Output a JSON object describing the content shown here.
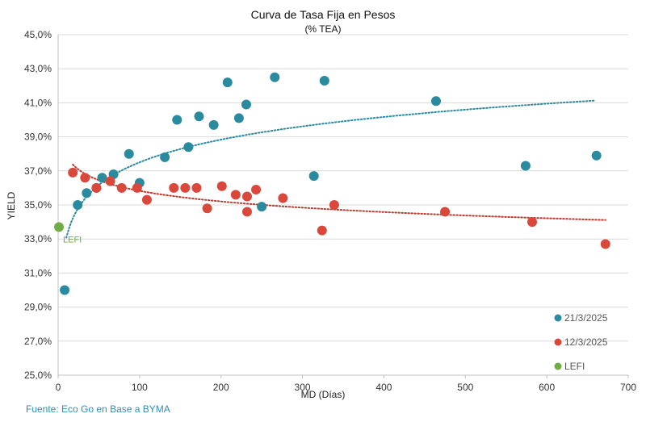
{
  "chart_data": {
    "type": "scatter",
    "title": "Curva de Tasa Fija en Pesos",
    "subtitle": "(% TEA)",
    "xlabel": "MD (Días)",
    "ylabel": "YIELD",
    "xlim": [
      0,
      700
    ],
    "ylim": [
      25,
      45
    ],
    "xticks": [
      0,
      100,
      200,
      300,
      400,
      500,
      600,
      700
    ],
    "xtick_labels": [
      "0",
      "100",
      "200",
      "300",
      "400",
      "500",
      "600",
      "700"
    ],
    "yticks": [
      25,
      27,
      29,
      31,
      33,
      35,
      37,
      39,
      41,
      43,
      45
    ],
    "ytick_labels": [
      "25,0%",
      "27,0%",
      "29,0%",
      "31,0%",
      "33,0%",
      "35,0%",
      "37,0%",
      "39,0%",
      "41,0%",
      "43,0%",
      "45,0%"
    ],
    "grid": "horizontal",
    "legend_position": "bottom-right",
    "series": [
      {
        "name": "21/3/2025",
        "color": "#2a8a9e",
        "trend_color": "#2a8a9e",
        "trendline": "logarithmic",
        "trend_x_range": [
          10,
          660
        ],
        "points": [
          [
            8,
            30.0
          ],
          [
            24,
            35.0
          ],
          [
            35,
            35.7
          ],
          [
            47,
            36.0
          ],
          [
            54,
            36.6
          ],
          [
            68,
            36.8
          ],
          [
            87,
            38.0
          ],
          [
            100,
            36.3
          ],
          [
            131,
            37.8
          ],
          [
            146,
            40.0
          ],
          [
            160,
            38.4
          ],
          [
            173,
            40.2
          ],
          [
            191,
            39.7
          ],
          [
            208,
            42.2
          ],
          [
            222,
            40.1
          ],
          [
            231,
            40.9
          ],
          [
            266,
            42.5
          ],
          [
            250,
            34.9
          ],
          [
            314,
            36.7
          ],
          [
            327,
            42.3
          ],
          [
            464,
            41.1
          ],
          [
            574,
            37.3
          ],
          [
            661,
            37.9
          ]
        ]
      },
      {
        "name": "12/3/2025",
        "color": "#d9483b",
        "trend_color": "#c0392b",
        "trendline": "logarithmic",
        "trend_x_range": [
          18,
          672
        ],
        "points": [
          [
            18,
            36.9
          ],
          [
            33,
            36.6
          ],
          [
            47,
            36.0
          ],
          [
            64,
            36.4
          ],
          [
            78,
            36.0
          ],
          [
            97,
            36.0
          ],
          [
            109,
            35.3
          ],
          [
            142,
            36.0
          ],
          [
            156,
            36.0
          ],
          [
            170,
            36.0
          ],
          [
            183,
            34.8
          ],
          [
            201,
            36.1
          ],
          [
            218,
            35.6
          ],
          [
            232,
            35.5
          ],
          [
            232,
            34.6
          ],
          [
            243,
            35.9
          ],
          [
            276,
            35.4
          ],
          [
            324,
            33.5
          ],
          [
            339,
            35.0
          ],
          [
            475,
            34.6
          ],
          [
            582,
            34.0
          ],
          [
            672,
            32.7
          ]
        ]
      },
      {
        "name": "LEFI",
        "color": "#70ad47",
        "points": [
          [
            1,
            33.7
          ]
        ],
        "label": "LEFI"
      }
    ]
  },
  "source": "Fuente: Eco Go en Base a BYMA"
}
